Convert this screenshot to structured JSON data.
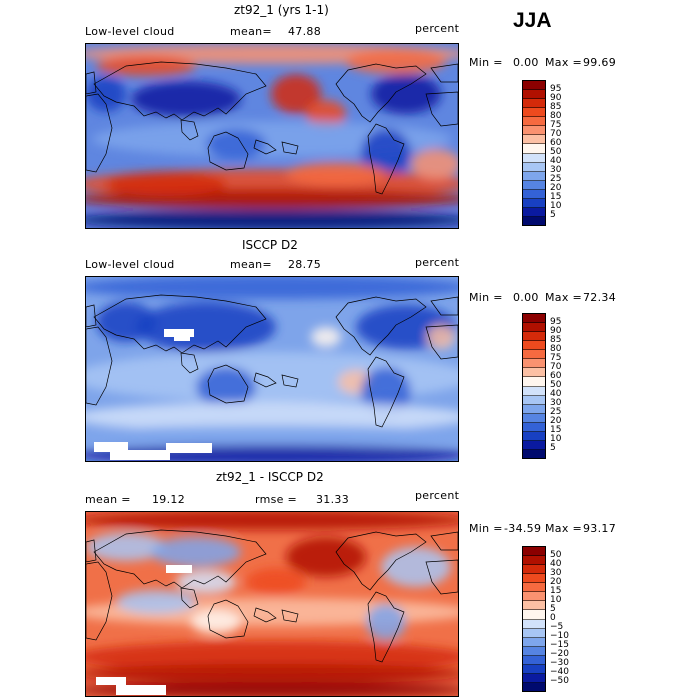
{
  "season": "JJA",
  "panels": [
    {
      "id": "model",
      "title": "zt92_1 (yrs 1-1)",
      "left_label": "Low-level cloud",
      "mean_label": "mean=",
      "mean_value": "47.88",
      "right_label": "percent",
      "min_label": "Min =",
      "min_value": "0.00",
      "max_label": "Max =",
      "max_value": "99.69",
      "levels": [
        "95",
        "90",
        "85",
        "80",
        "75",
        "70",
        "60",
        "50",
        "40",
        "30",
        "25",
        "20",
        "15",
        "10",
        "5"
      ],
      "colors": [
        "#8b0000",
        "#b01000",
        "#d42a0a",
        "#ee4a1e",
        "#f66a40",
        "#fa9270",
        "#fcc0a4",
        "#fff6ee",
        "#d2e2fa",
        "#a8c6f4",
        "#7ea6ec",
        "#5684e2",
        "#3462d6",
        "#1840c2",
        "#0a1aa0",
        "#000a6e"
      ],
      "base_color": "#5f86e0"
    },
    {
      "id": "obs",
      "title": "ISCCP D2",
      "left_label": "Low-level cloud",
      "mean_label": "mean=",
      "mean_value": "28.75",
      "right_label": "percent",
      "min_label": "Min =",
      "min_value": "0.00",
      "max_label": "Max =",
      "max_value": "72.34",
      "levels": [
        "95",
        "90",
        "85",
        "80",
        "75",
        "70",
        "60",
        "50",
        "40",
        "30",
        "25",
        "20",
        "15",
        "10",
        "5"
      ],
      "colors": [
        "#8b0000",
        "#b01000",
        "#d42a0a",
        "#ee4a1e",
        "#f66a40",
        "#fa9270",
        "#fcc0a4",
        "#fff6ee",
        "#d2e2fa",
        "#a8c6f4",
        "#7ea6ec",
        "#5684e2",
        "#3462d6",
        "#1840c2",
        "#0a1aa0",
        "#000a6e"
      ],
      "base_color": "#7ea4ea"
    },
    {
      "id": "diff",
      "title": "zt92_1 - ISCCP D2",
      "left_label": "mean =",
      "left_value": "19.12",
      "mid_label": "rmse =",
      "mid_value": "31.33",
      "right_label": "percent",
      "min_label": "Min =",
      "min_value": "-34.59",
      "max_label": "Max =",
      "max_value": "93.17",
      "levels": [
        "50",
        "40",
        "30",
        "20",
        "15",
        "10",
        "5",
        "0",
        "−5",
        "−10",
        "−15",
        "−20",
        "−30",
        "−40",
        "−50"
      ],
      "colors": [
        "#8b0000",
        "#b01000",
        "#d42a0a",
        "#ee4a1e",
        "#f66a40",
        "#fa9270",
        "#fcc0a4",
        "#fff6ee",
        "#d2e2fa",
        "#a8c6f4",
        "#7ea6ec",
        "#5684e2",
        "#3462d6",
        "#1840c2",
        "#0a1aa0",
        "#000a6e"
      ],
      "base_color": "#f07048"
    }
  ]
}
